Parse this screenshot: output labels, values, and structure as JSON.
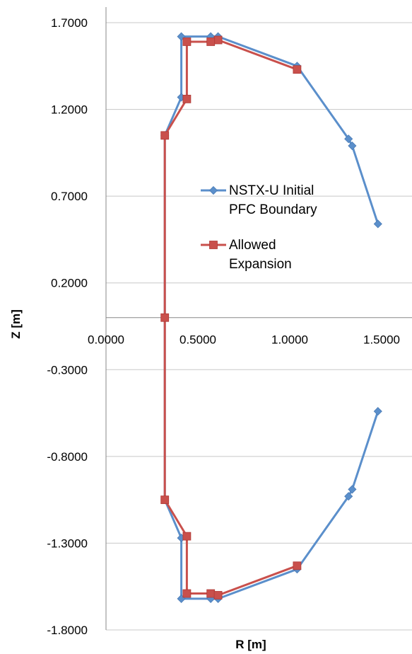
{
  "chart_data": {
    "type": "scatter",
    "title": "",
    "xlabel": "R [m]",
    "ylabel": "Z [m]",
    "xlim": [
      0,
      1.5
    ],
    "ylim": [
      -1.8,
      1.7
    ],
    "grid": "horizontal",
    "legend_placement": "right-middle",
    "x_ticks": [
      "0.0000",
      "0.5000",
      "1.0000",
      "1.5000"
    ],
    "y_ticks": [
      "1.7000",
      "1.2000",
      "0.7000",
      "0.2000",
      "-0.3000",
      "-0.8000",
      "-1.3000",
      "-1.8000"
    ],
    "x_tick_values": [
      0,
      0.5,
      1.0,
      1.5
    ],
    "y_tick_values": [
      1.7,
      1.2,
      0.7,
      0.2,
      -0.3,
      -0.8,
      -1.3,
      -1.8
    ],
    "series": [
      {
        "name": "NSTX-U Initial PFC Boundary",
        "legend_lines": [
          "NSTX-U Initial",
          "PFC Boundary"
        ],
        "color": "#5B8FCB",
        "marker": "diamond",
        "points": [
          [
            1.48,
            0.54
          ],
          [
            1.34,
            0.99
          ],
          [
            1.32,
            1.03
          ],
          [
            1.04,
            1.45
          ],
          [
            0.61,
            1.62
          ],
          [
            0.57,
            1.62
          ],
          [
            0.41,
            1.62
          ],
          [
            0.41,
            1.27
          ],
          [
            0.32,
            1.05
          ],
          [
            0.32,
            0.0
          ],
          [
            0.32,
            -1.05
          ],
          [
            0.41,
            -1.27
          ],
          [
            0.41,
            -1.62
          ],
          [
            0.57,
            -1.62
          ],
          [
            0.61,
            -1.62
          ],
          [
            1.04,
            -1.45
          ],
          [
            1.32,
            -1.03
          ],
          [
            1.34,
            -0.99
          ],
          [
            1.48,
            -0.54
          ]
        ]
      },
      {
        "name": "Allowed Expansion",
        "legend_lines": [
          "Allowed",
          "Expansion"
        ],
        "color": "#C9504C",
        "marker": "square",
        "points": [
          [
            1.04,
            1.43
          ],
          [
            0.61,
            1.6
          ],
          [
            0.57,
            1.59
          ],
          [
            0.44,
            1.59
          ],
          [
            0.44,
            1.26
          ],
          [
            0.32,
            1.05
          ],
          [
            0.32,
            0.0
          ],
          [
            0.32,
            -1.05
          ],
          [
            0.44,
            -1.26
          ],
          [
            0.44,
            -1.59
          ],
          [
            0.57,
            -1.59
          ],
          [
            0.61,
            -1.6
          ],
          [
            1.04,
            -1.43
          ]
        ]
      }
    ]
  }
}
